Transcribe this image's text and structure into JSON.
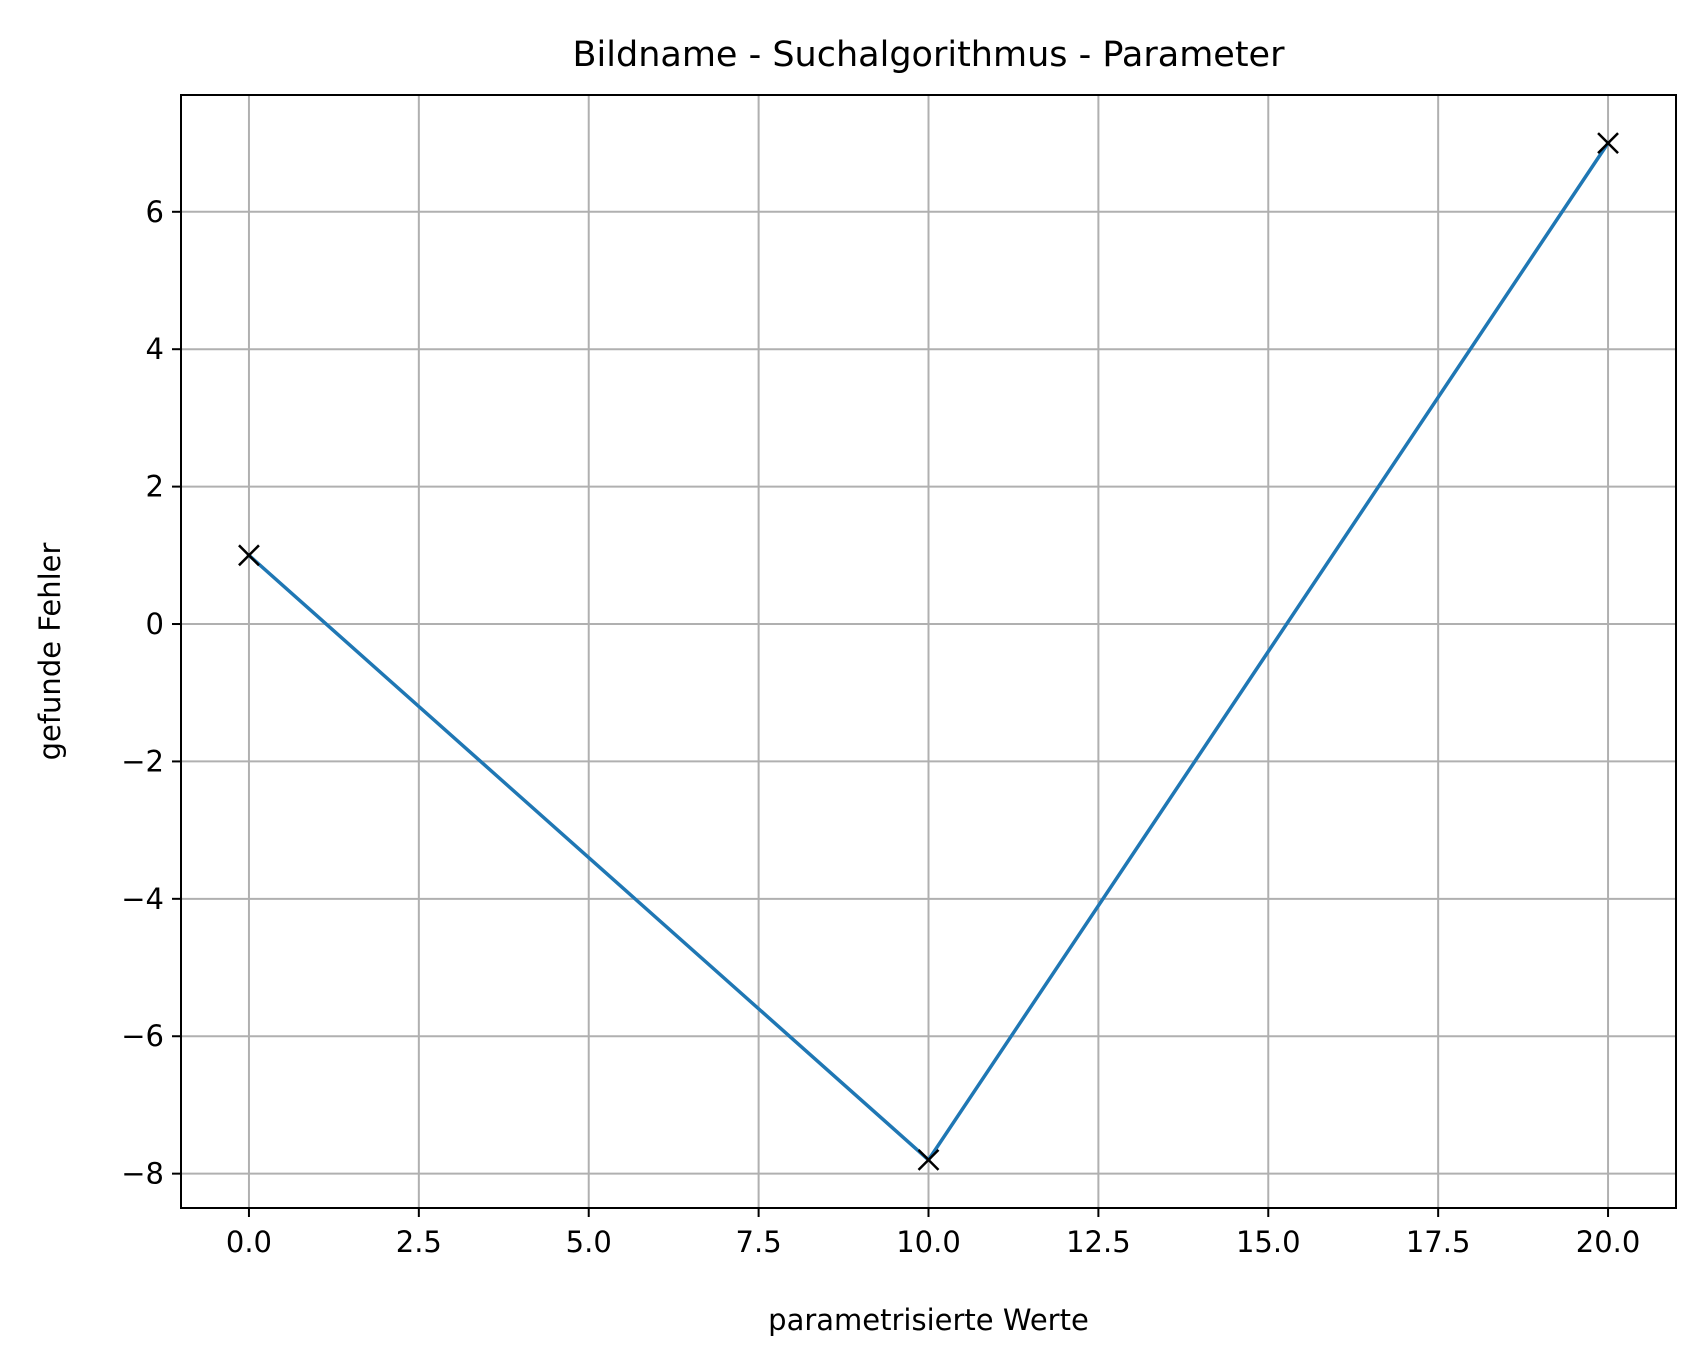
{
  "chart_data": {
    "type": "line",
    "title": "Bildname - Suchalgorithmus - Parameter",
    "xlabel": "parametrisierte Werte",
    "ylabel": "gefunde Fehler",
    "x": [
      0,
      10,
      20
    ],
    "series": [
      {
        "values": [
          1,
          -7.8,
          7
        ],
        "color": "#1f77b4",
        "marker": "x",
        "marker_color": "#000000"
      }
    ],
    "xlim": [
      -1.0,
      21.0
    ],
    "ylim": [
      -8.5,
      7.7
    ],
    "xticks": [
      0.0,
      2.5,
      5.0,
      7.5,
      10.0,
      12.5,
      15.0,
      17.5,
      20.0
    ],
    "xtick_labels": [
      "0.0",
      "2.5",
      "5.0",
      "7.5",
      "10.0",
      "12.5",
      "15.0",
      "17.5",
      "20.0"
    ],
    "yticks": [
      -8,
      -6,
      -4,
      -2,
      0,
      2,
      4,
      6
    ],
    "ytick_labels": [
      "−8",
      "−6",
      "−4",
      "−2",
      "0",
      "2",
      "4",
      "6"
    ],
    "grid": true,
    "legend": "none"
  }
}
